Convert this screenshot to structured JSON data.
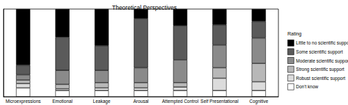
{
  "chart_data": {
    "type": "bar",
    "title": "Theoretical Perspectives",
    "legend_title": "Rating",
    "categories": [
      "Microexpressions",
      "Emotional",
      "Leakage",
      "Arousal",
      "Attempted Control",
      "Self Presentational",
      "Cognitive"
    ],
    "series": [
      {
        "name": "Little to no scientific support",
        "color": "#000000",
        "values": [
          64,
          32,
          42,
          11,
          19,
          18,
          14
        ]
      },
      {
        "name": "Some scientific support",
        "color": "#5a5a5a",
        "values": [
          11,
          38,
          28,
          56,
          39,
          23,
          19
        ]
      },
      {
        "name": "Moderate scientific support",
        "color": "#8a8a8a",
        "values": [
          6,
          16,
          14,
          17,
          26,
          26,
          29
        ]
      },
      {
        "name": "Strong scientific support",
        "color": "#b8b8b8",
        "values": [
          4,
          5,
          6,
          6,
          5,
          12,
          21
        ]
      },
      {
        "name": "Robust scientific support",
        "color": "#dcdcdc",
        "values": [
          5,
          2,
          3,
          3,
          4,
          14,
          10
        ]
      },
      {
        "name": "Don't know",
        "color": "#ffffff",
        "values": [
          10,
          7,
          7,
          7,
          7,
          7,
          7
        ]
      }
    ],
    "ylim": [
      0,
      100
    ],
    "stacked": true,
    "grid": false,
    "legend": "right",
    "tick_labels": "x"
  }
}
